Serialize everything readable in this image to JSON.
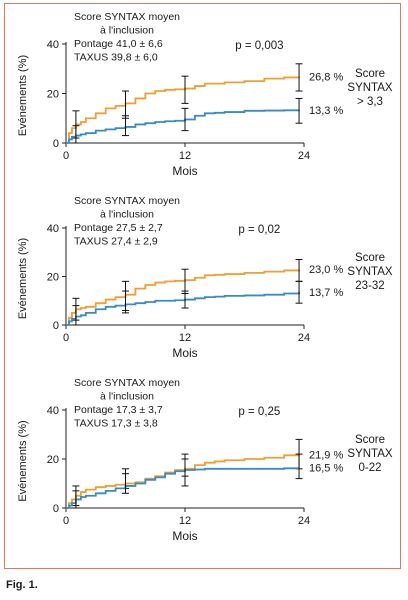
{
  "figure": {
    "caption": "Fig. 1."
  },
  "colors": {
    "pontage": "#f0a030",
    "taxus": "#3a8ac8",
    "frame": "#e07a5f"
  },
  "chart_data": [
    {
      "type": "line",
      "ylabel": "Evénements (%)",
      "xlabel": "Mois",
      "xlim": [
        0,
        24
      ],
      "ylim": [
        0,
        40
      ],
      "xticks": [
        0,
        12,
        24
      ],
      "yticks": [
        0,
        20,
        40
      ],
      "info_lines": [
        "Score SYNTAX moyen",
        "à l'inclusion",
        "Pontage 41,0 ± 6,6",
        "TAXUS 39,8 ± 6,0"
      ],
      "p_value": "p = 0,003",
      "group_label_lines": [
        "Score",
        "SYNTAX",
        "> 3,3"
      ],
      "series": [
        {
          "key": "pontage",
          "end_label": "26,8 %",
          "x": [
            0,
            0.3,
            0.6,
            1.0,
            1.5,
            2,
            3,
            4,
            5,
            6,
            7,
            8,
            9,
            10,
            11,
            12,
            13,
            14,
            15,
            16,
            18,
            20,
            22,
            23.5
          ],
          "y": [
            0,
            4,
            6,
            7.5,
            8.5,
            10,
            12,
            14,
            15,
            16,
            18,
            20,
            21,
            21.5,
            21.7,
            22,
            23,
            24,
            24,
            24.5,
            25,
            26,
            26.5,
            26.8
          ],
          "error_bars": [
            {
              "x": 1,
              "low": 2,
              "high": 13
            },
            {
              "x": 6,
              "low": 10,
              "high": 21
            },
            {
              "x": 12,
              "low": 16,
              "high": 27
            },
            {
              "x": 23.5,
              "low": 21,
              "high": 32
            }
          ]
        },
        {
          "key": "taxus",
          "end_label": "13,3 %",
          "x": [
            0,
            0.3,
            0.6,
            1.0,
            1.5,
            2,
            3,
            4,
            5,
            6,
            7,
            8,
            9,
            10,
            11,
            12,
            13,
            14,
            15,
            16,
            18,
            20,
            22,
            23.5
          ],
          "y": [
            0,
            1.5,
            2.5,
            3,
            3.5,
            4,
            5,
            5.5,
            6,
            6.5,
            7.5,
            8,
            8.5,
            8.8,
            9,
            9.5,
            11,
            12,
            12.2,
            12.5,
            13,
            13.1,
            13.2,
            13.3
          ],
          "error_bars": [
            {
              "x": 1,
              "low": 0,
              "high": 7
            },
            {
              "x": 6,
              "low": 3,
              "high": 11
            },
            {
              "x": 12,
              "low": 5,
              "high": 14
            },
            {
              "x": 23.5,
              "low": 8,
              "high": 18
            }
          ]
        }
      ]
    },
    {
      "type": "line",
      "ylabel": "Evénements (%)",
      "xlabel": "Mois",
      "xlim": [
        0,
        24
      ],
      "ylim": [
        0,
        40
      ],
      "xticks": [
        0,
        12,
        24
      ],
      "yticks": [
        0,
        20,
        40
      ],
      "info_lines": [
        "Score SYNTAX moyen",
        "à l'inclusion",
        "Pontage 27,5 ± 2,7",
        "TAXUS 27,4 ± 2,9"
      ],
      "p_value": "p = 0,02",
      "group_label_lines": [
        "Score",
        "SYNTAX",
        "23-32"
      ],
      "series": [
        {
          "key": "pontage",
          "end_label": "23,0 %",
          "x": [
            0,
            0.3,
            0.6,
            1.0,
            1.5,
            2,
            3,
            4,
            5,
            6,
            7,
            8,
            9,
            10,
            11,
            12,
            13,
            14,
            15,
            16,
            18,
            20,
            22,
            23.5
          ],
          "y": [
            0,
            3,
            5,
            6.5,
            7,
            7.5,
            9,
            10.5,
            11.5,
            12.5,
            15,
            16.5,
            17.5,
            18,
            18.2,
            18.5,
            19.5,
            20.5,
            20.7,
            21,
            21.5,
            22,
            22.5,
            23
          ],
          "error_bars": [
            {
              "x": 1,
              "low": 2,
              "high": 11
            },
            {
              "x": 6,
              "low": 6,
              "high": 18
            },
            {
              "x": 12,
              "low": 13,
              "high": 23
            },
            {
              "x": 23.5,
              "low": 18,
              "high": 27
            }
          ]
        },
        {
          "key": "taxus",
          "end_label": "13,7 %",
          "x": [
            0,
            0.3,
            0.6,
            1.0,
            1.5,
            2,
            3,
            4,
            5,
            6,
            7,
            8,
            9,
            10,
            11,
            12,
            13,
            14,
            15,
            16,
            18,
            20,
            22,
            23.5
          ],
          "y": [
            0,
            1.5,
            2.5,
            3.5,
            4,
            5,
            6.5,
            7.5,
            8,
            8.5,
            9,
            9.5,
            10,
            10,
            10.2,
            10.5,
            11,
            11.5,
            11.7,
            12,
            12.2,
            12.5,
            13,
            13.7
          ],
          "error_bars": [
            {
              "x": 1,
              "low": 0,
              "high": 8
            },
            {
              "x": 6,
              "low": 5,
              "high": 14
            },
            {
              "x": 12,
              "low": 7,
              "high": 14
            },
            {
              "x": 23.5,
              "low": 9,
              "high": 18
            }
          ]
        }
      ]
    },
    {
      "type": "line",
      "ylabel": "Evénements (%)",
      "xlabel": "Mois",
      "xlim": [
        0,
        24
      ],
      "ylim": [
        0,
        40
      ],
      "xticks": [
        0,
        12,
        24
      ],
      "yticks": [
        0,
        20,
        40
      ],
      "info_lines": [
        "Score SYNTAX moyen",
        "à l'inclusion",
        "Pontage 17,3 ± 3,7",
        "TAXUS 17,3 ± 3,8"
      ],
      "p_value": "p = 0,25",
      "group_label_lines": [
        "Score",
        "SYNTAX",
        "0-22"
      ],
      "series": [
        {
          "key": "pontage",
          "end_label": "21,9 %",
          "x": [
            0,
            0.3,
            0.6,
            1.0,
            1.5,
            2,
            3,
            4,
            5,
            6,
            7,
            8,
            9,
            10,
            11,
            12,
            13,
            14,
            15,
            16,
            18,
            20,
            22,
            23.5
          ],
          "y": [
            0,
            2,
            3.5,
            5,
            6.5,
            7.5,
            8.5,
            9,
            9.5,
            10,
            10.5,
            12,
            13,
            14.5,
            15.5,
            16,
            17.5,
            18.5,
            19,
            19.5,
            20,
            20.5,
            21.5,
            21.9
          ],
          "error_bars": [
            {
              "x": 1,
              "low": 1,
              "high": 9
            },
            {
              "x": 6,
              "low": 8,
              "high": 16
            },
            {
              "x": 12,
              "low": 13,
              "high": 22
            },
            {
              "x": 23.5,
              "low": 16,
              "high": 28
            }
          ]
        },
        {
          "key": "taxus",
          "end_label": "16,5 %",
          "x": [
            0,
            0.3,
            0.6,
            1.0,
            1.5,
            2,
            3,
            4,
            5,
            6,
            7,
            8,
            9,
            10,
            11,
            12,
            13,
            14,
            15,
            16,
            18,
            20,
            22,
            23.5
          ],
          "y": [
            0,
            1,
            2,
            3.5,
            4.5,
            5,
            6,
            7,
            8,
            9,
            10,
            11.5,
            12.5,
            14,
            15,
            15.5,
            15.7,
            16,
            16,
            16,
            16,
            16,
            16.2,
            16.5
          ],
          "error_bars": [
            {
              "x": 1,
              "low": 0,
              "high": 7
            },
            {
              "x": 6,
              "low": 6,
              "high": 14
            },
            {
              "x": 12,
              "low": 9,
              "high": 20
            },
            {
              "x": 23.5,
              "low": 12,
              "high": 22
            }
          ]
        }
      ]
    }
  ]
}
